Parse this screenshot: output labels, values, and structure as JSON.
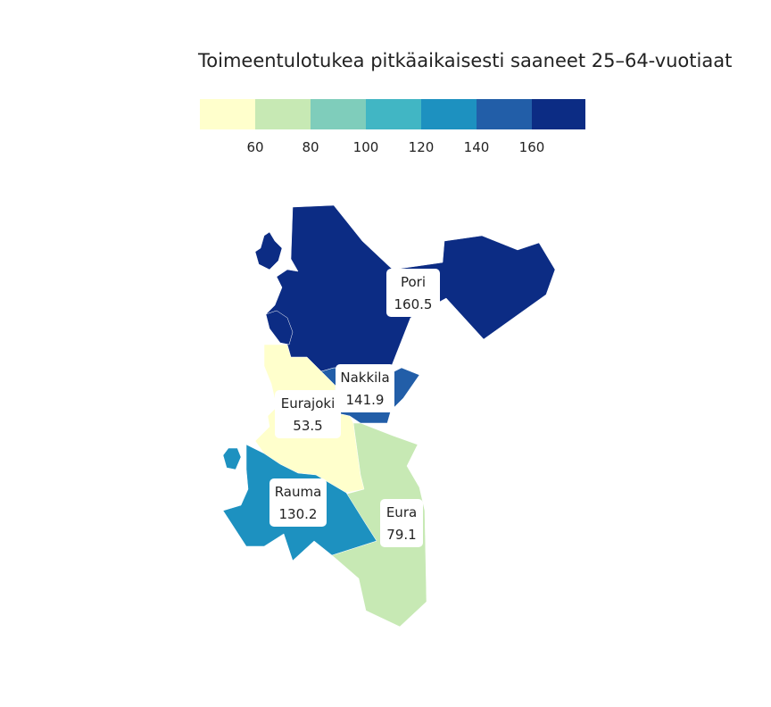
{
  "title": "Toimeentulotukea pitkäaikaisesti saaneet 25–64-vuotiaat",
  "legend": {
    "colors": [
      "#ffffcc",
      "#c7e9b4",
      "#7fcdbb",
      "#41b6c4",
      "#1d91c0",
      "#225ea8",
      "#0c2c84"
    ],
    "ticks": [
      "60",
      "80",
      "100",
      "120",
      "140",
      "160"
    ]
  },
  "regions": [
    {
      "name": "Pori",
      "value": "160.5",
      "color": "#0c2c84"
    },
    {
      "name": "Nakkila",
      "value": "141.9",
      "color": "#225ea8"
    },
    {
      "name": "Eurajoki",
      "value": "53.5",
      "color": "#ffffcc"
    },
    {
      "name": "Rauma",
      "value": "130.2",
      "color": "#1d91c0"
    },
    {
      "name": "Eura",
      "value": "79.1",
      "color": "#c7e9b4"
    }
  ]
}
